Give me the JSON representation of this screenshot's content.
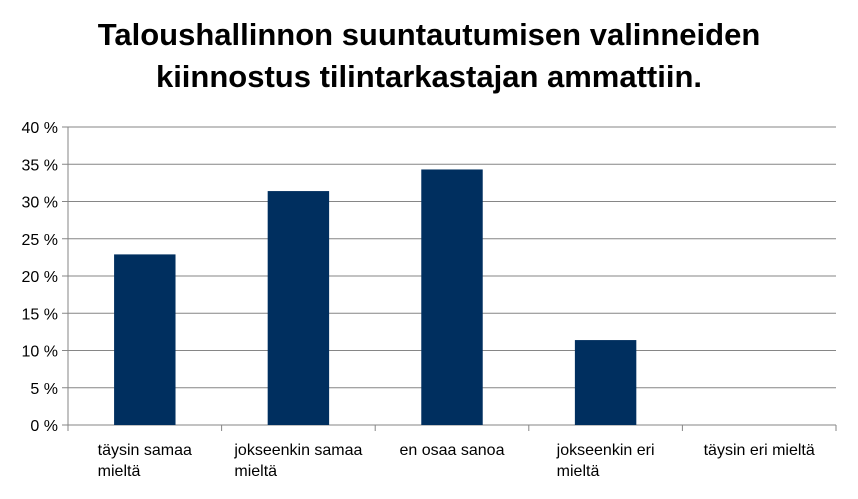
{
  "title_lines": [
    "Taloushallinnon suuntautumisen valinneiden",
    "kiinnostus tilintarkastajan ammattiin."
  ],
  "colors": {
    "bar": "#002F5F",
    "grid": "#868686",
    "axis": "#868686"
  },
  "chart_data": {
    "type": "bar",
    "title": "Taloushallinnon suuntautumisen valinneiden kiinnostus tilintarkastajan ammattiin.",
    "categories": [
      [
        "täysin samaa",
        "mieltä"
      ],
      [
        "jokseenkin samaa",
        "mieltä"
      ],
      [
        "en osaa sanoa"
      ],
      [
        "jokseenkin eri",
        "mieltä"
      ],
      [
        "täysin eri mieltä"
      ]
    ],
    "values": [
      22.9,
      31.4,
      34.3,
      11.4,
      0
    ],
    "ylim": [
      0,
      40
    ],
    "yticks": [
      "0 %",
      "5 %",
      "10 %",
      "15 %",
      "20 %",
      "25 %",
      "30 %",
      "35 %",
      "40 %"
    ],
    "grid": true,
    "legend": "none"
  }
}
